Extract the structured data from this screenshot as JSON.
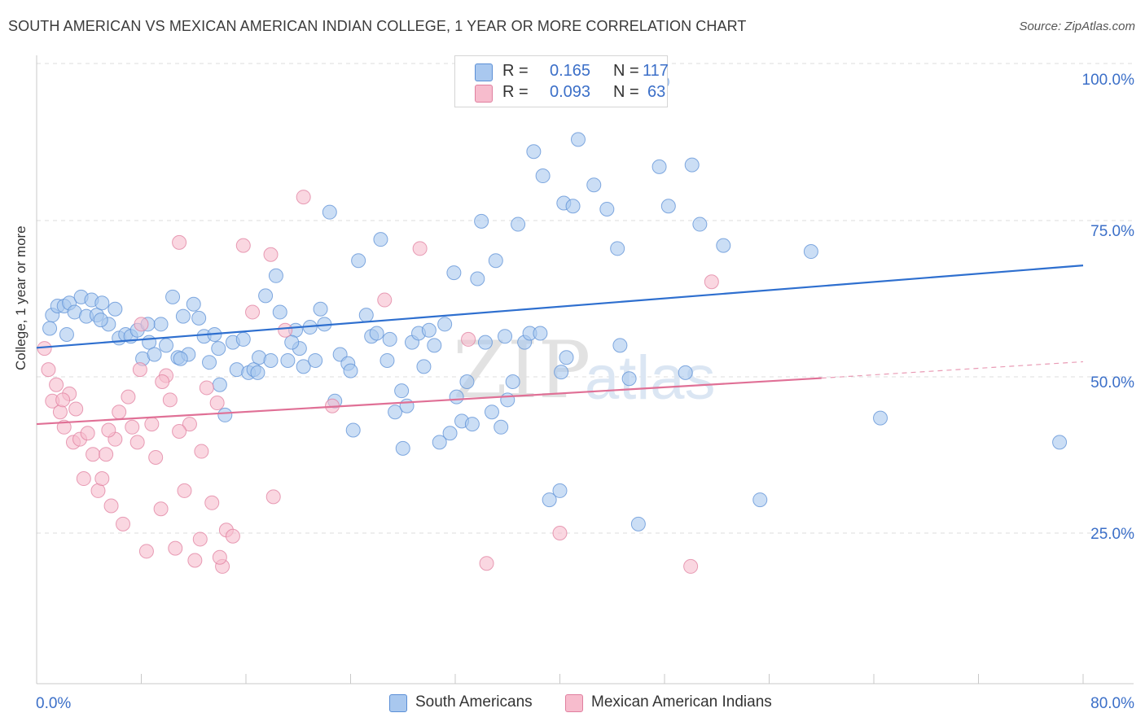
{
  "title": "SOUTH AMERICAN VS MEXICAN AMERICAN INDIAN COLLEGE, 1 YEAR OR MORE CORRELATION CHART",
  "source": "Source: ZipAtlas.com",
  "watermark": {
    "zip": "ZIP",
    "atlas": "atlas"
  },
  "legend": {
    "r_label": "R =",
    "n_label": "N =",
    "rows": [
      {
        "r": "0.165",
        "n": "117",
        "color": "#a9c8ef",
        "edge": "#5b8fd6"
      },
      {
        "r": "0.093",
        "n": "63",
        "color": "#f7bccd",
        "edge": "#e07f9f"
      }
    ]
  },
  "bottom_legend": [
    {
      "label": "South Americans",
      "color": "#a9c8ef",
      "edge": "#5b8fd6"
    },
    {
      "label": "Mexican American Indians",
      "color": "#f7bccd",
      "edge": "#e07f9f"
    }
  ],
  "colors": {
    "blue_line": "#2e6fcf",
    "pink_line": "#e07096",
    "axis_text": "#3b6fc8",
    "grid": "#dcdcdc"
  },
  "chart_data": {
    "type": "scatter",
    "title": "SOUTH AMERICAN VS MEXICAN AMERICAN INDIAN COLLEGE, 1 YEAR OR MORE CORRELATION CHART",
    "xlabel": "",
    "ylabel": "College, 1 year or more",
    "xlim": [
      0,
      80
    ],
    "ylim": [
      0,
      105
    ],
    "x_tick_labels": [
      {
        "value": 0,
        "label": "0.0%"
      },
      {
        "value": 80,
        "label": "80.0%"
      }
    ],
    "y_tick_labels": [
      {
        "value": 25,
        "label": "25.0%"
      },
      {
        "value": 50,
        "label": "50.0%"
      },
      {
        "value": 75,
        "label": "75.0%"
      },
      {
        "value": 100,
        "label": "100.0%"
      }
    ],
    "grid": true,
    "series": [
      {
        "name": "South Americans",
        "R": 0.165,
        "N": 117,
        "trend": {
          "x": [
            0,
            80
          ],
          "y": [
            55.6,
            69.2
          ]
        },
        "points": [
          [
            1.2,
            61.0
          ],
          [
            1.6,
            62.5
          ],
          [
            2.1,
            62.5
          ],
          [
            2.5,
            63.0
          ],
          [
            2.9,
            61.5
          ],
          [
            3.4,
            64.0
          ],
          [
            3.8,
            60.8
          ],
          [
            4.2,
            63.5
          ],
          [
            4.6,
            61.0
          ],
          [
            5.0,
            63.0
          ],
          [
            5.5,
            59.5
          ],
          [
            6.0,
            62.0
          ],
          [
            6.3,
            57.2
          ],
          [
            6.8,
            57.8
          ],
          [
            7.2,
            57.5
          ],
          [
            7.7,
            58.5
          ],
          [
            8.1,
            53.8
          ],
          [
            8.6,
            56.5
          ],
          [
            9.0,
            54.5
          ],
          [
            9.5,
            59.5
          ],
          [
            9.9,
            56.0
          ],
          [
            10.4,
            64.0
          ],
          [
            10.8,
            54.0
          ],
          [
            11.2,
            60.8
          ],
          [
            11.6,
            54.5
          ],
          [
            12.0,
            62.8
          ],
          [
            12.4,
            60.5
          ],
          [
            12.8,
            57.5
          ],
          [
            13.2,
            53.2
          ],
          [
            13.6,
            57.8
          ],
          [
            14.0,
            49.5
          ],
          [
            14.4,
            44.5
          ],
          [
            15.0,
            56.5
          ],
          [
            15.3,
            52.0
          ],
          [
            15.8,
            57.0
          ],
          [
            16.2,
            51.5
          ],
          [
            16.6,
            52.0
          ],
          [
            17.0,
            54.0
          ],
          [
            17.5,
            64.2
          ],
          [
            17.9,
            53.5
          ],
          [
            18.3,
            67.5
          ],
          [
            18.6,
            61.5
          ],
          [
            19.2,
            53.5
          ],
          [
            19.8,
            58.5
          ],
          [
            20.1,
            55.5
          ],
          [
            20.4,
            52.5
          ],
          [
            20.9,
            59.0
          ],
          [
            21.3,
            53.5
          ],
          [
            21.7,
            62.0
          ],
          [
            22.0,
            59.5
          ],
          [
            22.4,
            78.0
          ],
          [
            22.8,
            46.8
          ],
          [
            23.2,
            54.5
          ],
          [
            23.8,
            53.0
          ],
          [
            24.2,
            42.0
          ],
          [
            24.6,
            70.0
          ],
          [
            25.2,
            61.0
          ],
          [
            25.6,
            57.5
          ],
          [
            26.0,
            58.0
          ],
          [
            26.3,
            73.5
          ],
          [
            26.8,
            53.5
          ],
          [
            27.0,
            57.0
          ],
          [
            27.4,
            45.0
          ],
          [
            28.0,
            39.0
          ],
          [
            28.3,
            46.0
          ],
          [
            28.7,
            56.5
          ],
          [
            29.2,
            58.0
          ],
          [
            29.6,
            52.5
          ],
          [
            30.0,
            58.5
          ],
          [
            30.4,
            56.0
          ],
          [
            30.8,
            40.0
          ],
          [
            31.2,
            59.5
          ],
          [
            31.6,
            41.5
          ],
          [
            31.9,
            68.0
          ],
          [
            32.5,
            43.5
          ],
          [
            32.9,
            50.0
          ],
          [
            33.3,
            43.0
          ],
          [
            33.7,
            67.0
          ],
          [
            34.0,
            76.5
          ],
          [
            34.3,
            56.5
          ],
          [
            34.8,
            45.0
          ],
          [
            35.1,
            70.0
          ],
          [
            35.5,
            42.5
          ],
          [
            36.0,
            47.0
          ],
          [
            36.4,
            50.0
          ],
          [
            36.8,
            76.0
          ],
          [
            37.3,
            56.5
          ],
          [
            37.7,
            58.0
          ],
          [
            38.0,
            88.0
          ],
          [
            38.7,
            84.0
          ],
          [
            39.2,
            30.5
          ],
          [
            40.0,
            32.0
          ],
          [
            40.3,
            79.5
          ],
          [
            41.0,
            79.0
          ],
          [
            41.4,
            90.0
          ],
          [
            42.6,
            82.5
          ],
          [
            43.6,
            78.5
          ],
          [
            44.4,
            72.0
          ],
          [
            45.3,
            50.5
          ],
          [
            46.0,
            26.5
          ],
          [
            47.6,
            85.5
          ],
          [
            48.3,
            79.0
          ],
          [
            49.6,
            51.5
          ],
          [
            50.1,
            85.8
          ],
          [
            50.7,
            76.0
          ],
          [
            52.5,
            72.5
          ],
          [
            55.3,
            30.5
          ],
          [
            59.2,
            71.5
          ],
          [
            64.5,
            44.0
          ],
          [
            78.2,
            40.0
          ],
          [
            1.0,
            58.8
          ],
          [
            2.3,
            57.8
          ],
          [
            4.9,
            60.2
          ],
          [
            8.5,
            59.5
          ],
          [
            11.0,
            53.8
          ],
          [
            13.9,
            55.5
          ],
          [
            16.9,
            51.5
          ],
          [
            19.5,
            56.5
          ],
          [
            24.0,
            51.8
          ],
          [
            27.9,
            48.5
          ],
          [
            32.1,
            47.5
          ],
          [
            35.8,
            57.5
          ],
          [
            47.8,
            99.5
          ],
          [
            38.5,
            58.0
          ],
          [
            40.5,
            54.0
          ],
          [
            44.6,
            56.0
          ],
          [
            40.1,
            51.6
          ]
        ]
      },
      {
        "name": "Mexican American Indians",
        "R": 0.093,
        "N": 63,
        "trend": {
          "x": [
            0,
            60
          ],
          "y": [
            43.0,
            50.6
          ]
        },
        "trend_dashed": {
          "x": [
            60,
            80
          ],
          "y": [
            50.6,
            53.3
          ]
        },
        "points": [
          [
            0.6,
            55.5
          ],
          [
            0.9,
            52.0
          ],
          [
            1.2,
            46.8
          ],
          [
            1.5,
            49.5
          ],
          [
            1.8,
            45.0
          ],
          [
            2.1,
            42.5
          ],
          [
            2.5,
            48.0
          ],
          [
            2.8,
            40.0
          ],
          [
            3.0,
            45.5
          ],
          [
            3.3,
            40.5
          ],
          [
            3.6,
            34.0
          ],
          [
            3.9,
            41.5
          ],
          [
            4.3,
            38.0
          ],
          [
            4.7,
            32.0
          ],
          [
            5.0,
            34.0
          ],
          [
            5.3,
            38.0
          ],
          [
            5.7,
            29.5
          ],
          [
            6.0,
            40.5
          ],
          [
            6.3,
            45.0
          ],
          [
            6.6,
            26.5
          ],
          [
            7.0,
            47.5
          ],
          [
            7.3,
            42.5
          ],
          [
            7.7,
            40.0
          ],
          [
            8.0,
            59.5
          ],
          [
            8.4,
            22.0
          ],
          [
            8.8,
            43.0
          ],
          [
            9.1,
            37.5
          ],
          [
            9.5,
            29.0
          ],
          [
            9.9,
            51.0
          ],
          [
            10.2,
            47.0
          ],
          [
            10.6,
            22.5
          ],
          [
            10.9,
            73.0
          ],
          [
            11.3,
            32.0
          ],
          [
            11.7,
            43.0
          ],
          [
            12.1,
            20.5
          ],
          [
            12.6,
            38.5
          ],
          [
            13.0,
            49.0
          ],
          [
            13.4,
            30.0
          ],
          [
            13.8,
            46.5
          ],
          [
            14.2,
            19.5
          ],
          [
            14.5,
            25.5
          ],
          [
            15.0,
            24.5
          ],
          [
            15.8,
            72.5
          ],
          [
            16.5,
            61.5
          ],
          [
            17.9,
            71.0
          ],
          [
            19.0,
            58.5
          ],
          [
            20.4,
            80.5
          ],
          [
            22.6,
            46.0
          ],
          [
            26.6,
            63.5
          ],
          [
            29.3,
            72.0
          ],
          [
            33.0,
            57.0
          ],
          [
            34.4,
            20.0
          ],
          [
            40.0,
            25.0
          ],
          [
            50.0,
            19.5
          ],
          [
            51.6,
            66.5
          ],
          [
            2.0,
            47.0
          ],
          [
            5.5,
            42.0
          ],
          [
            7.9,
            52.0
          ],
          [
            9.6,
            50.0
          ],
          [
            10.9,
            41.8
          ],
          [
            12.5,
            24.0
          ],
          [
            14.0,
            21.0
          ],
          [
            18.1,
            31.0
          ]
        ]
      }
    ]
  }
}
